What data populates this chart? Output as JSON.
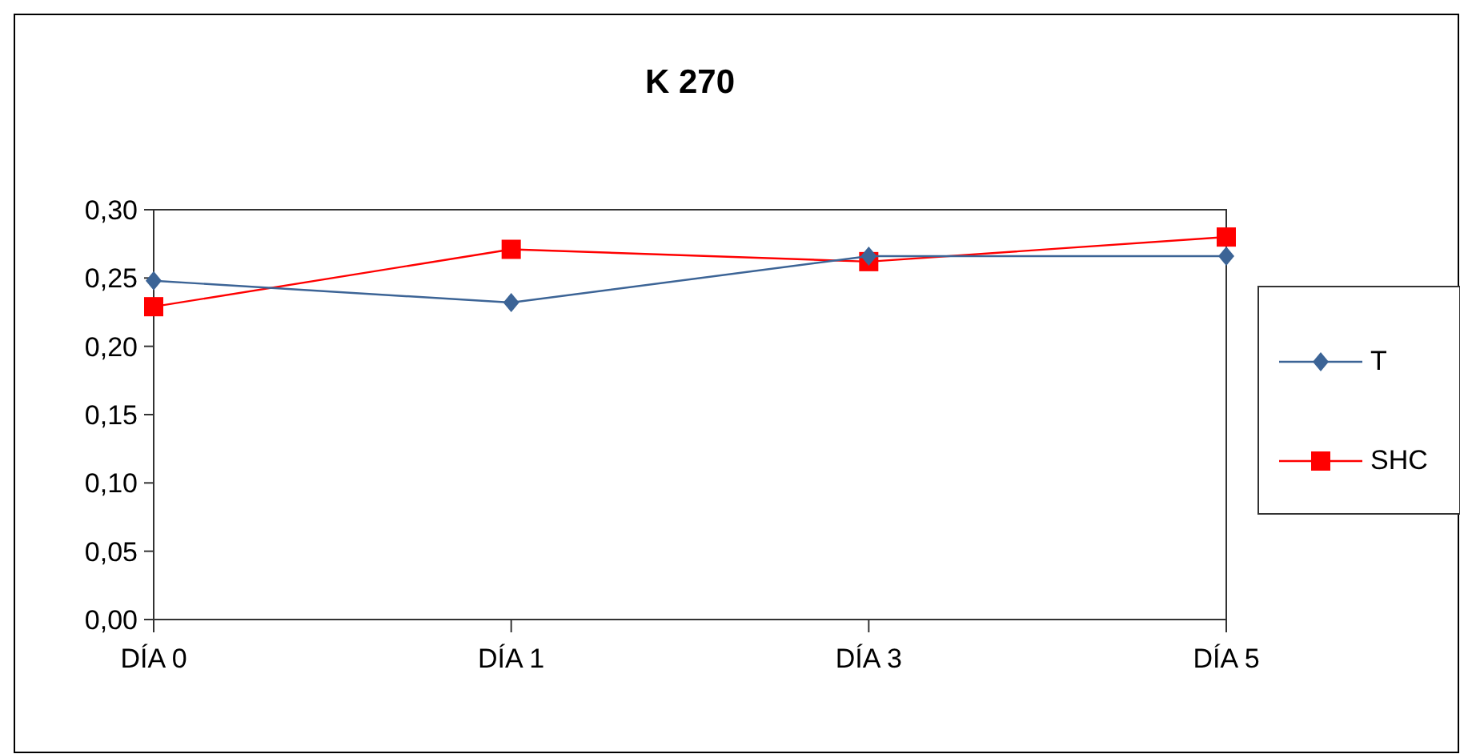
{
  "chart_data": {
    "type": "line",
    "title": "K 270",
    "categories": [
      "DÍA 0",
      "DÍA 1",
      "DÍA 3",
      "DÍA 5"
    ],
    "series": [
      {
        "name": "T",
        "color": "#3c6496",
        "marker": "diamond",
        "values": [
          0.248,
          0.232,
          0.266,
          0.266
        ]
      },
      {
        "name": "SHC",
        "color": "#ff0000",
        "marker": "square",
        "values": [
          0.229,
          0.271,
          0.262,
          0.28
        ]
      }
    ],
    "ylim": [
      0,
      0.3
    ],
    "yticks": [
      {
        "value": 0,
        "label": "0,00"
      },
      {
        "value": 0.05,
        "label": "0,05"
      },
      {
        "value": 0.1,
        "label": "0,10"
      },
      {
        "value": 0.15,
        "label": "0,15"
      },
      {
        "value": 0.2,
        "label": "0,20"
      },
      {
        "value": 0.25,
        "label": "0,25"
      },
      {
        "value": 0.3,
        "label": "0,30"
      }
    ],
    "grid": false,
    "legend": "right",
    "line_style": "solid"
  }
}
